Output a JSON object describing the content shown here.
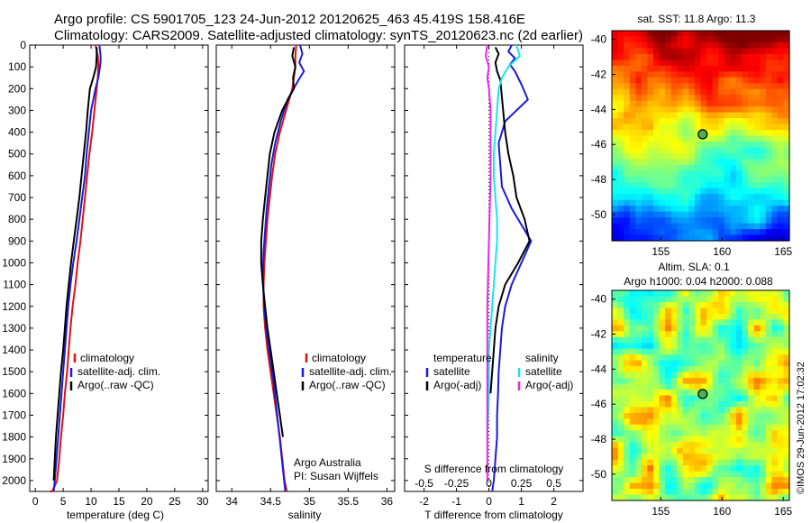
{
  "header": {
    "line1": "Argo profile: CS 5901705_123 24-Jun-2012 20120625_463 45.419S 158.416E",
    "line2": "Climatology: CARS2009. Satellite-adjusted climatology: synTS_20120623.nc (2d earlier)"
  },
  "colors": {
    "climatology": "#e01010",
    "satellite": "#1a1adc",
    "argo": "#000000",
    "sal_satellite": "#19e6e6",
    "sal_argo": "#ee22ee"
  },
  "chart_data": [
    {
      "type": "line",
      "xlabel": "temperature (deg C)",
      "ylabel": "",
      "xlim": [
        -1,
        31
      ],
      "ylim": [
        2050,
        0
      ],
      "xticks": [
        0,
        5,
        10,
        15,
        20,
        25,
        30
      ],
      "yticks": [
        0,
        100,
        200,
        300,
        400,
        500,
        600,
        700,
        800,
        900,
        1000,
        1100,
        1200,
        1300,
        1400,
        1500,
        1600,
        1700,
        1800,
        1900,
        2000
      ],
      "legend": [
        "climatology",
        "satellite-adj. clim.",
        "Argo(..raw -QC)"
      ],
      "series": [
        {
          "name": "climatology",
          "color": "#e01010",
          "x": [
            10.8,
            11.0,
            11.2,
            11.3,
            11.3,
            11.2,
            11.0,
            10.6,
            10.2,
            9.7,
            9.3,
            8.9,
            8.5,
            8.1,
            7.6,
            7.2,
            6.7,
            6.3,
            6.0,
            5.7,
            5.3,
            5.0,
            4.6,
            4.3,
            3.9,
            3.5,
            3.2,
            3.0,
            2.8,
            2.6
          ],
          "y": [
            0,
            25,
            50,
            75,
            100,
            150,
            200,
            300,
            400,
            500,
            600,
            700,
            800,
            900,
            1000,
            1100,
            1200,
            1300,
            1400,
            1500,
            1600,
            1700,
            1800,
            1900,
            2000,
            2025,
            2040,
            2050,
            2050,
            2050
          ]
        },
        {
          "name": "satellite-adj. clim.",
          "color": "#1a1adc",
          "x": [
            11.5,
            11.6,
            11.7,
            11.7,
            11.6,
            11.3,
            10.8,
            10.0,
            9.6,
            9.2,
            8.9,
            8.4,
            7.9,
            7.4,
            6.8,
            6.3,
            5.9,
            5.6,
            5.3,
            5.0,
            4.7,
            4.4,
            4.1,
            3.8,
            3.5,
            3.3
          ],
          "y": [
            0,
            25,
            50,
            75,
            100,
            150,
            200,
            300,
            400,
            500,
            600,
            700,
            800,
            900,
            1000,
            1100,
            1200,
            1300,
            1400,
            1500,
            1600,
            1700,
            1800,
            1900,
            2000,
            2050
          ]
        },
        {
          "name": "Argo(..raw -QC)",
          "color": "#000000",
          "x": [
            11.0,
            11.0,
            10.9,
            10.4,
            9.8,
            9.4,
            9.1,
            8.7,
            8.3,
            7.9,
            7.4,
            6.9,
            6.4,
            6.0,
            5.6,
            5.3,
            5.0,
            4.6,
            4.3,
            4.0,
            3.7,
            3.5,
            3.3
          ],
          "y": [
            10,
            50,
            100,
            150,
            200,
            300,
            400,
            500,
            600,
            700,
            800,
            900,
            1000,
            1100,
            1200,
            1300,
            1400,
            1500,
            1600,
            1700,
            1800,
            1900,
            2000
          ]
        }
      ]
    },
    {
      "type": "line",
      "xlabel": "salinity",
      "ylabel": "",
      "xlim": [
        33.8,
        36.1
      ],
      "ylim": [
        2050,
        0
      ],
      "xticks": [
        34,
        34.5,
        35,
        35.5,
        36
      ],
      "xtick_labels": [
        "34",
        "34.5",
        "35",
        "35.5",
        "36"
      ],
      "legend": [
        "climatology",
        "satellite-adj. clim.",
        "Argo(..raw -QC)"
      ],
      "annotation": [
        "Argo Australia",
        "PI: Susan Wijffels"
      ],
      "series": [
        {
          "name": "climatology",
          "color": "#e01010",
          "x": [
            34.83,
            34.82,
            34.82,
            34.8,
            34.78,
            34.7,
            34.62,
            34.56,
            34.52,
            34.49,
            34.46,
            34.44,
            34.42,
            34.41,
            34.41,
            34.43,
            34.46,
            34.5,
            34.54,
            34.58,
            34.62,
            34.65,
            34.68,
            34.71
          ],
          "y": [
            0,
            50,
            100,
            150,
            200,
            300,
            400,
            500,
            600,
            700,
            800,
            900,
            1000,
            1100,
            1200,
            1300,
            1400,
            1500,
            1600,
            1700,
            1800,
            1900,
            2000,
            2050
          ]
        },
        {
          "name": "satellite-adj. clim.",
          "color": "#1a1adc",
          "x": [
            34.88,
            34.91,
            34.87,
            34.93,
            34.86,
            34.72,
            34.63,
            34.56,
            34.51,
            34.48,
            34.45,
            34.43,
            34.41,
            34.4,
            34.41,
            34.43,
            34.46,
            34.5,
            34.54,
            34.57,
            34.6,
            34.63,
            34.66,
            34.69
          ],
          "y": [
            0,
            40,
            80,
            120,
            160,
            250,
            350,
            450,
            550,
            650,
            750,
            850,
            950,
            1050,
            1150,
            1250,
            1350,
            1450,
            1550,
            1650,
            1750,
            1850,
            1950,
            2050
          ]
        },
        {
          "name": "Argo(..raw -QC)",
          "color": "#000000",
          "x": [
            34.8,
            34.78,
            34.82,
            34.79,
            34.8,
            34.65,
            34.55,
            34.49,
            34.46,
            34.43,
            34.4,
            34.38,
            34.38,
            34.4,
            34.43,
            34.46,
            34.5,
            34.54,
            34.58,
            34.62,
            34.66
          ],
          "y": [
            10,
            50,
            100,
            150,
            200,
            300,
            400,
            500,
            600,
            700,
            800,
            900,
            1000,
            1100,
            1200,
            1300,
            1400,
            1500,
            1600,
            1700,
            1800
          ]
        }
      ]
    },
    {
      "type": "line",
      "xlabel": "T difference from climatology",
      "xlabel_top": "S difference from climatology",
      "xlim": [
        -2.6,
        2.9
      ],
      "ylim": [
        2050,
        0
      ],
      "xticks": [
        -2,
        -1,
        0,
        1,
        2
      ],
      "xtick_labels": [
        "-2",
        "-1",
        "0",
        "1",
        "2"
      ],
      "sticks_labels": [
        "-0.5",
        "-0.25",
        "0",
        "0.25",
        "0.5"
      ],
      "sticks_positions": [
        -2,
        -1,
        0,
        1,
        2
      ],
      "legend": {
        "temperature": "temperature",
        "salinity": "salinity",
        "t_sat": "satellite",
        "t_argo": "Argo(-adj)",
        "s_sat": "satellite",
        "s_argo": "Argo(-adj)"
      },
      "series": [
        {
          "name": "temperature satellite",
          "color": "#1a1adc",
          "x": [
            0.7,
            0.6,
            0.8,
            0.65,
            0.8,
            1.0,
            1.2,
            0.5,
            0.3,
            0.35,
            0.4,
            0.7,
            1.1,
            1.3,
            1.0,
            0.7,
            0.5,
            0.4,
            0.35,
            0.3,
            0.28,
            0.25,
            0.25,
            0.2,
            0.15,
            0.1
          ],
          "y": [
            0,
            30,
            60,
            90,
            120,
            180,
            250,
            350,
            450,
            550,
            650,
            750,
            850,
            900,
            1000,
            1100,
            1200,
            1300,
            1400,
            1500,
            1600,
            1700,
            1800,
            1900,
            2000,
            2050
          ]
        },
        {
          "name": "temperature Argo(-adj)",
          "color": "#000000",
          "x": [
            0.2,
            0.3,
            0.2,
            0.25,
            0.35,
            0.5,
            0.6,
            0.75,
            0.85,
            1.1,
            1.25,
            0.9,
            0.5,
            0.3,
            0.2,
            0.15,
            0.1,
            0.05
          ],
          "y": [
            10,
            40,
            80,
            120,
            160,
            400,
            500,
            600,
            700,
            800,
            900,
            1000,
            1100,
            1200,
            1300,
            1400,
            1500,
            1600
          ]
        },
        {
          "name": "salinity satellite",
          "color": "#19e6e6",
          "x": [
            0.85,
            0.95,
            0.6,
            0.4,
            0.3,
            0.25,
            0.2,
            0.15,
            0.15,
            0.2,
            0.25,
            0.25,
            0.2,
            0.15,
            0.1,
            0.05,
            0.0,
            0.0,
            -0.05
          ],
          "y": [
            0,
            50,
            100,
            150,
            200,
            300,
            400,
            500,
            600,
            700,
            800,
            900,
            1000,
            1100,
            1200,
            1300,
            1400,
            1600,
            1800
          ]
        },
        {
          "name": "salinity Argo(-adj)",
          "color": "#ee22ee",
          "x": [
            -0.05,
            -0.1,
            0.0,
            -0.05,
            0.0,
            0.05,
            0.05,
            0.0,
            -0.05,
            -0.05,
            -0.05,
            -0.05,
            -0.05
          ],
          "y": [
            0,
            50,
            100,
            150,
            200,
            300,
            600,
            900,
            1200,
            1400,
            1600,
            1800,
            2000
          ]
        }
      ]
    },
    {
      "type": "heatmap",
      "title": "sat. SST: 11.8 Argo: 11.3",
      "xticks": [
        155,
        160,
        165
      ],
      "yticks": [
        -40,
        -42,
        -44,
        -46,
        -48,
        -50
      ],
      "xtick_labels": [
        "155",
        "160",
        "165"
      ],
      "ytick_labels": [
        "-40",
        "-42",
        "-44",
        "-46",
        "-48",
        "-50"
      ],
      "xlim": [
        151,
        165.5
      ],
      "ylim": [
        -51.5,
        -39.5
      ],
      "marker": {
        "lon": 158.416,
        "lat": -45.419
      }
    },
    {
      "type": "heatmap",
      "title": "Altim. SLA: 0.1",
      "subtitle": "Argo h1000: 0.04 h2000: 0.088",
      "xticks": [
        155,
        160,
        165
      ],
      "yticks": [
        -40,
        -42,
        -44,
        -46,
        -48,
        -50
      ],
      "xtick_labels": [
        "155",
        "160",
        "165"
      ],
      "ytick_labels": [
        "-40",
        "-42",
        "-44",
        "-46",
        "-48",
        "-50"
      ],
      "xlim": [
        151,
        165.5
      ],
      "ylim": [
        -51.5,
        -39.5
      ],
      "marker": {
        "lon": 158.416,
        "lat": -45.419
      }
    }
  ],
  "side_text": "©IMOS 29-Jun-2012 17:02:32"
}
